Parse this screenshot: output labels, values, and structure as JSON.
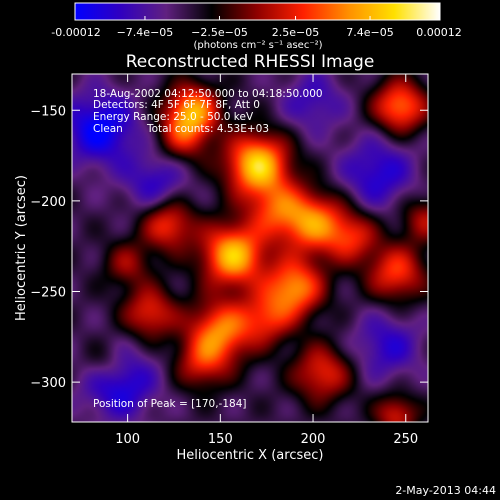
{
  "chart_data": {
    "type": "heatmap",
    "title": "Reconstructed RHESSI Image",
    "xlabel": "Heliocentric X (arcsec)",
    "ylabel": "Heliocentric Y (arcsec)",
    "xlim": [
      70,
      262
    ],
    "ylim": [
      -322,
      -130
    ],
    "x_ticks": [
      100,
      150,
      200,
      250
    ],
    "y_ticks": [
      -150,
      -200,
      -250,
      -300
    ],
    "colorbar": {
      "vmin": -0.00012,
      "vmax": 0.00012,
      "tick_values": [
        -0.00012,
        -7.4e-05,
        -2.5e-05,
        2.5e-05,
        7.4e-05,
        0.00012
      ],
      "tick_labels": [
        "-0.00012",
        "−7.4e−05",
        "−2.5e−05",
        "2.5e−05",
        "7.4e−05",
        "0.00012"
      ],
      "units": "(photons cm⁻² s⁻¹ asec⁻²)",
      "colors": [
        "#0000ff",
        "#3000c0",
        "#602080",
        "#000000",
        "#900000",
        "#ff2000",
        "#ff9000",
        "#ffe000",
        "#ffffff"
      ]
    },
    "annotations": {
      "time_range": "18-Aug-2002 04:12:50.000 to 04:18:50.000",
      "detectors": "Detectors: 4F 5F 6F 7F 8F, Att 0",
      "energy": "Energy Range: 25.0 - 50.0 keV",
      "method": "Clean",
      "total_counts": "Total counts: 4.53E+03",
      "peak": "Position of Peak = [170,-184]"
    },
    "peak_position": [
      170,
      -184
    ],
    "source_blobs": [
      {
        "x": 170,
        "y": -180,
        "amp": 1.0,
        "sigma": 12
      },
      {
        "x": 157,
        "y": -230,
        "amp": 0.95,
        "sigma": 12
      },
      {
        "x": 190,
        "y": -248,
        "amp": 0.8,
        "sigma": 11
      },
      {
        "x": 150,
        "y": -272,
        "amp": 0.75,
        "sigma": 12
      },
      {
        "x": 135,
        "y": -150,
        "amp": 0.8,
        "sigma": 10
      },
      {
        "x": 200,
        "y": -212,
        "amp": 0.75,
        "sigma": 12
      },
      {
        "x": 122,
        "y": -213,
        "amp": 0.6,
        "sigma": 10
      },
      {
        "x": 247,
        "y": -148,
        "amp": 0.75,
        "sigma": 10
      },
      {
        "x": 245,
        "y": -240,
        "amp": 0.6,
        "sigma": 11
      },
      {
        "x": 112,
        "y": -262,
        "amp": 0.55,
        "sigma": 10
      },
      {
        "x": 205,
        "y": -295,
        "amp": 0.55,
        "sigma": 11
      },
      {
        "x": 180,
        "y": -205,
        "amp": 0.5,
        "sigma": 11
      },
      {
        "x": 130,
        "y": -165,
        "amp": 0.45,
        "sigma": 10
      },
      {
        "x": 221,
        "y": -220,
        "amp": 0.5,
        "sigma": 10
      },
      {
        "x": 140,
        "y": -290,
        "amp": 0.45,
        "sigma": 10
      },
      {
        "x": 175,
        "y": -265,
        "amp": 0.5,
        "sigma": 10
      },
      {
        "x": 100,
        "y": -235,
        "amp": 0.35,
        "sigma": 9
      },
      {
        "x": 260,
        "y": -210,
        "amp": 0.4,
        "sigma": 9
      },
      {
        "x": 245,
        "y": -318,
        "amp": 0.5,
        "sigma": 8
      },
      {
        "x": 88,
        "y": -290,
        "amp": 0.3,
        "sigma": 9
      }
    ],
    "negative_blobs": [
      {
        "x": 85,
        "y": -160,
        "amp": -0.55,
        "sigma": 14
      },
      {
        "x": 95,
        "y": -300,
        "amp": -0.5,
        "sigma": 14
      },
      {
        "x": 235,
        "y": -185,
        "amp": -0.4,
        "sigma": 14
      },
      {
        "x": 240,
        "y": -280,
        "amp": -0.35,
        "sigma": 13
      },
      {
        "x": 115,
        "y": -190,
        "amp": -0.35,
        "sigma": 12
      },
      {
        "x": 200,
        "y": -145,
        "amp": -0.3,
        "sigma": 12
      }
    ]
  },
  "footer": {
    "date_stamp": "2-May-2013 04:44"
  }
}
